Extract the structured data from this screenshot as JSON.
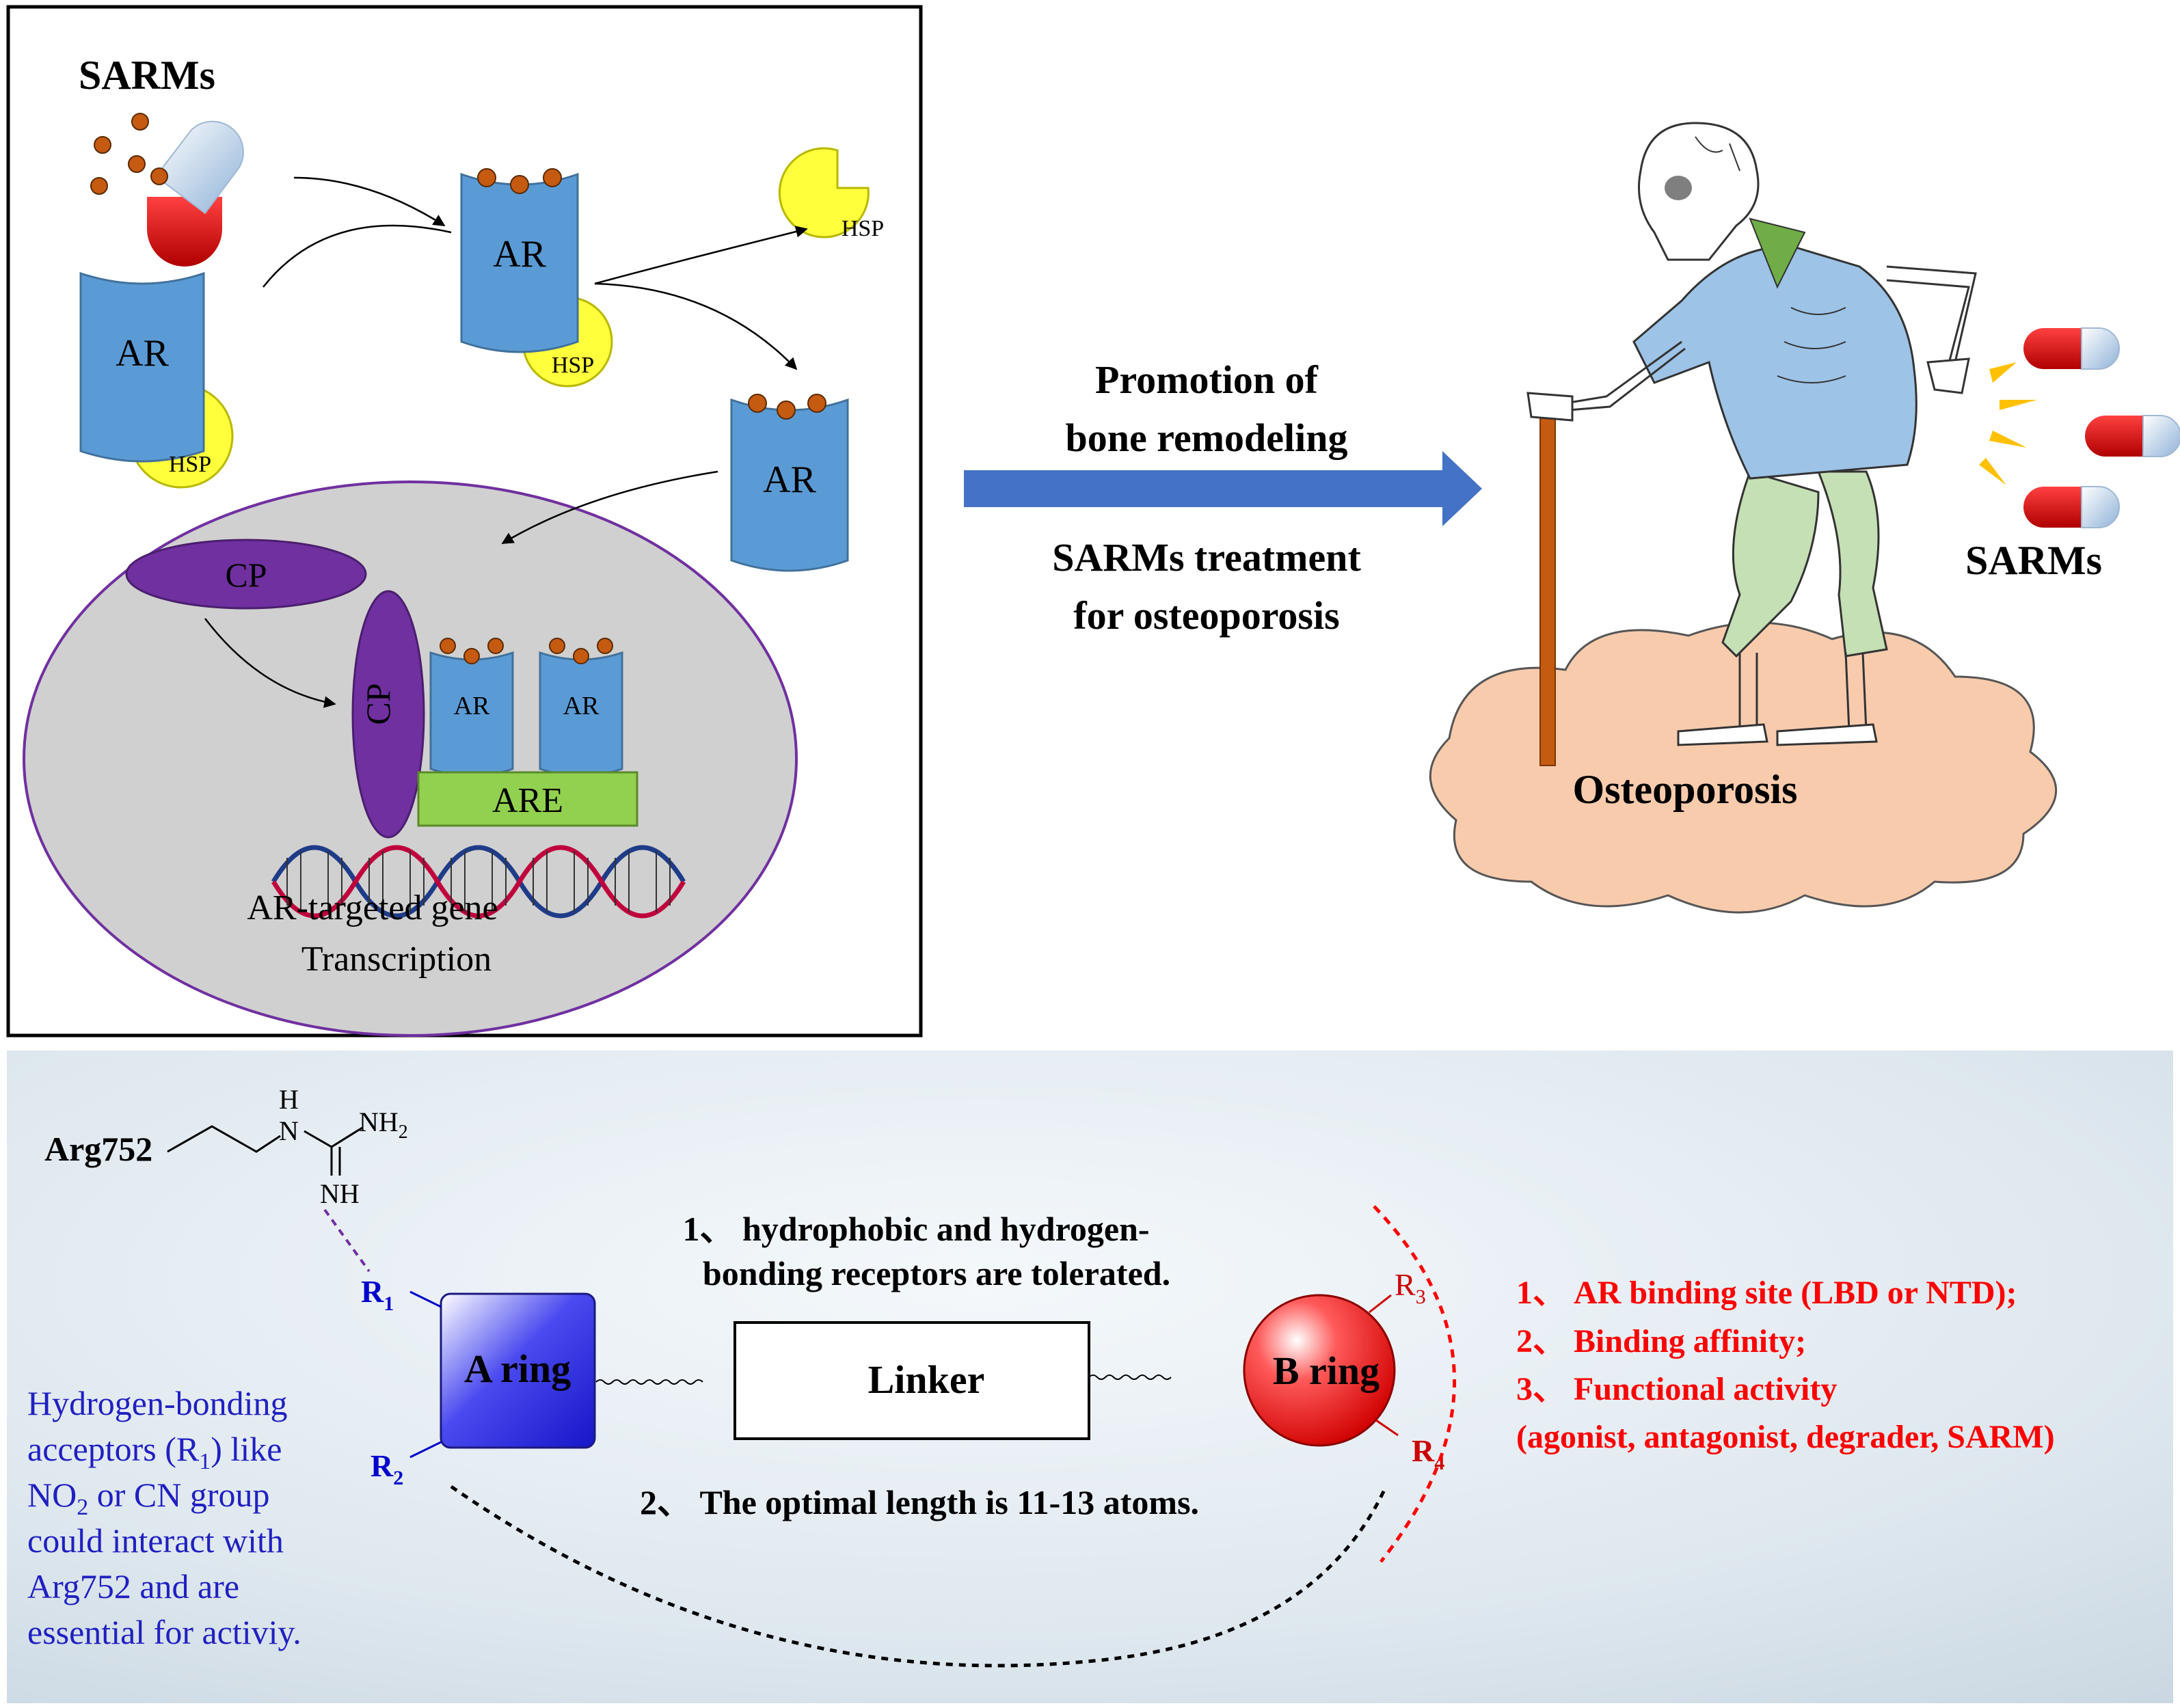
{
  "top_left": {
    "sarms_label": "SARMs",
    "ar_label": "AR",
    "hsp_label": "HSP",
    "cp_label": "CP",
    "are_label": "ARE",
    "gene_line1": "AR-targeted gene",
    "gene_line2": "Transcription"
  },
  "middle": {
    "promotion_line1": "Promotion of",
    "promotion_line2": "bone remodeling",
    "treatment_line1": "SARMs treatment",
    "treatment_line2": "for osteoporosis"
  },
  "right": {
    "sarms_label": "SARMs",
    "osteoporosis_label": "Osteoporosis"
  },
  "bottom": {
    "arg_label": "Arg752",
    "h_label": "H",
    "n_label": "N",
    "nh2_label": "NH",
    "nh2_sub": "2",
    "nh_label": "NH",
    "r1_label": "R",
    "r1_sub": "1",
    "r2_label": "R",
    "r2_sub": "2",
    "r3_label": "R",
    "r3_sub": "3",
    "r4_label": "R",
    "r4_sub": "4",
    "a_ring_label": "A ring",
    "b_ring_label": "B ring",
    "linker_label": "Linker",
    "linker_note1_line1": "1、 hydrophobic and hydrogen-",
    "linker_note1_line2": "bonding receptors are tolerated.",
    "linker_note2": "2、 The optimal length is 11-13 atoms.",
    "b_note1": "1、 AR binding site (LBD or NTD);",
    "b_note2": "2、 Binding affinity;",
    "b_note3": "3、  Functional activity",
    "b_note4": "(agonist, antagonist, degrader, SARM)",
    "a_note_line1": "Hydrogen-bonding",
    "a_note_line2_pre": "acceptors (R",
    "a_note_line2_sub": "1",
    "a_note_line2_post": ") like",
    "a_note_line3_pre": "NO",
    "a_note_line3_sub": "2",
    "a_note_line3_post": " or CN group",
    "a_note_line4": "could interact with",
    "a_note_line5": "Arg752 and are",
    "a_note_line6": "essential for activiy."
  },
  "colors": {
    "ar_blue": "#5b9bd5",
    "hsp_yellow": "#ffff3c",
    "cp_purple": "#7030a0",
    "are_green": "#92d050",
    "arrow_blue": "#4472c4",
    "note_red": "#ff0000",
    "note_blue": "#2020c0"
  }
}
